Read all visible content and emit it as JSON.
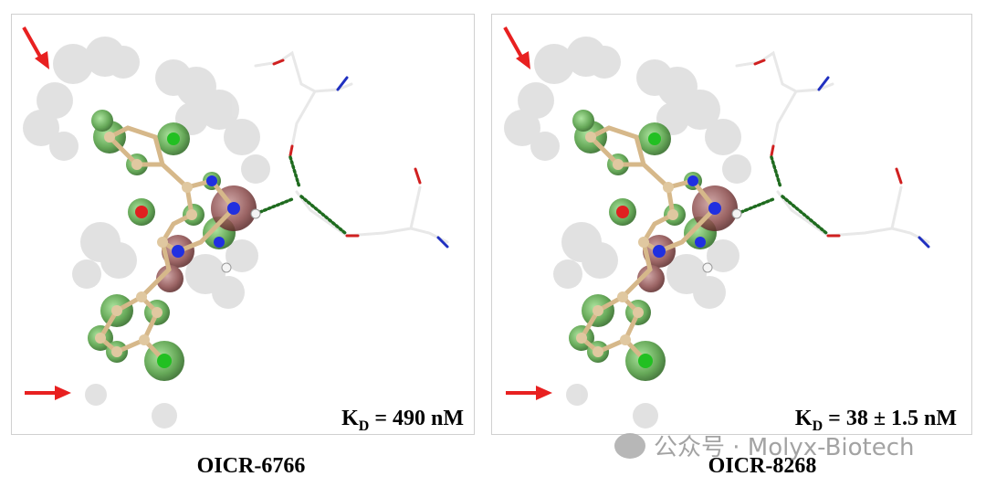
{
  "panels": [
    {
      "label": "OICR-6766",
      "kd": {
        "symbol": "K",
        "subscript": "D",
        "value": "= 490 nM"
      }
    },
    {
      "label": "OICR-8268",
      "kd": {
        "symbol": "K",
        "subscript": "D",
        "value": "= 38 ± 1.5 nM"
      }
    }
  ],
  "watermark": "公众号 · Molyx-Biotech"
}
